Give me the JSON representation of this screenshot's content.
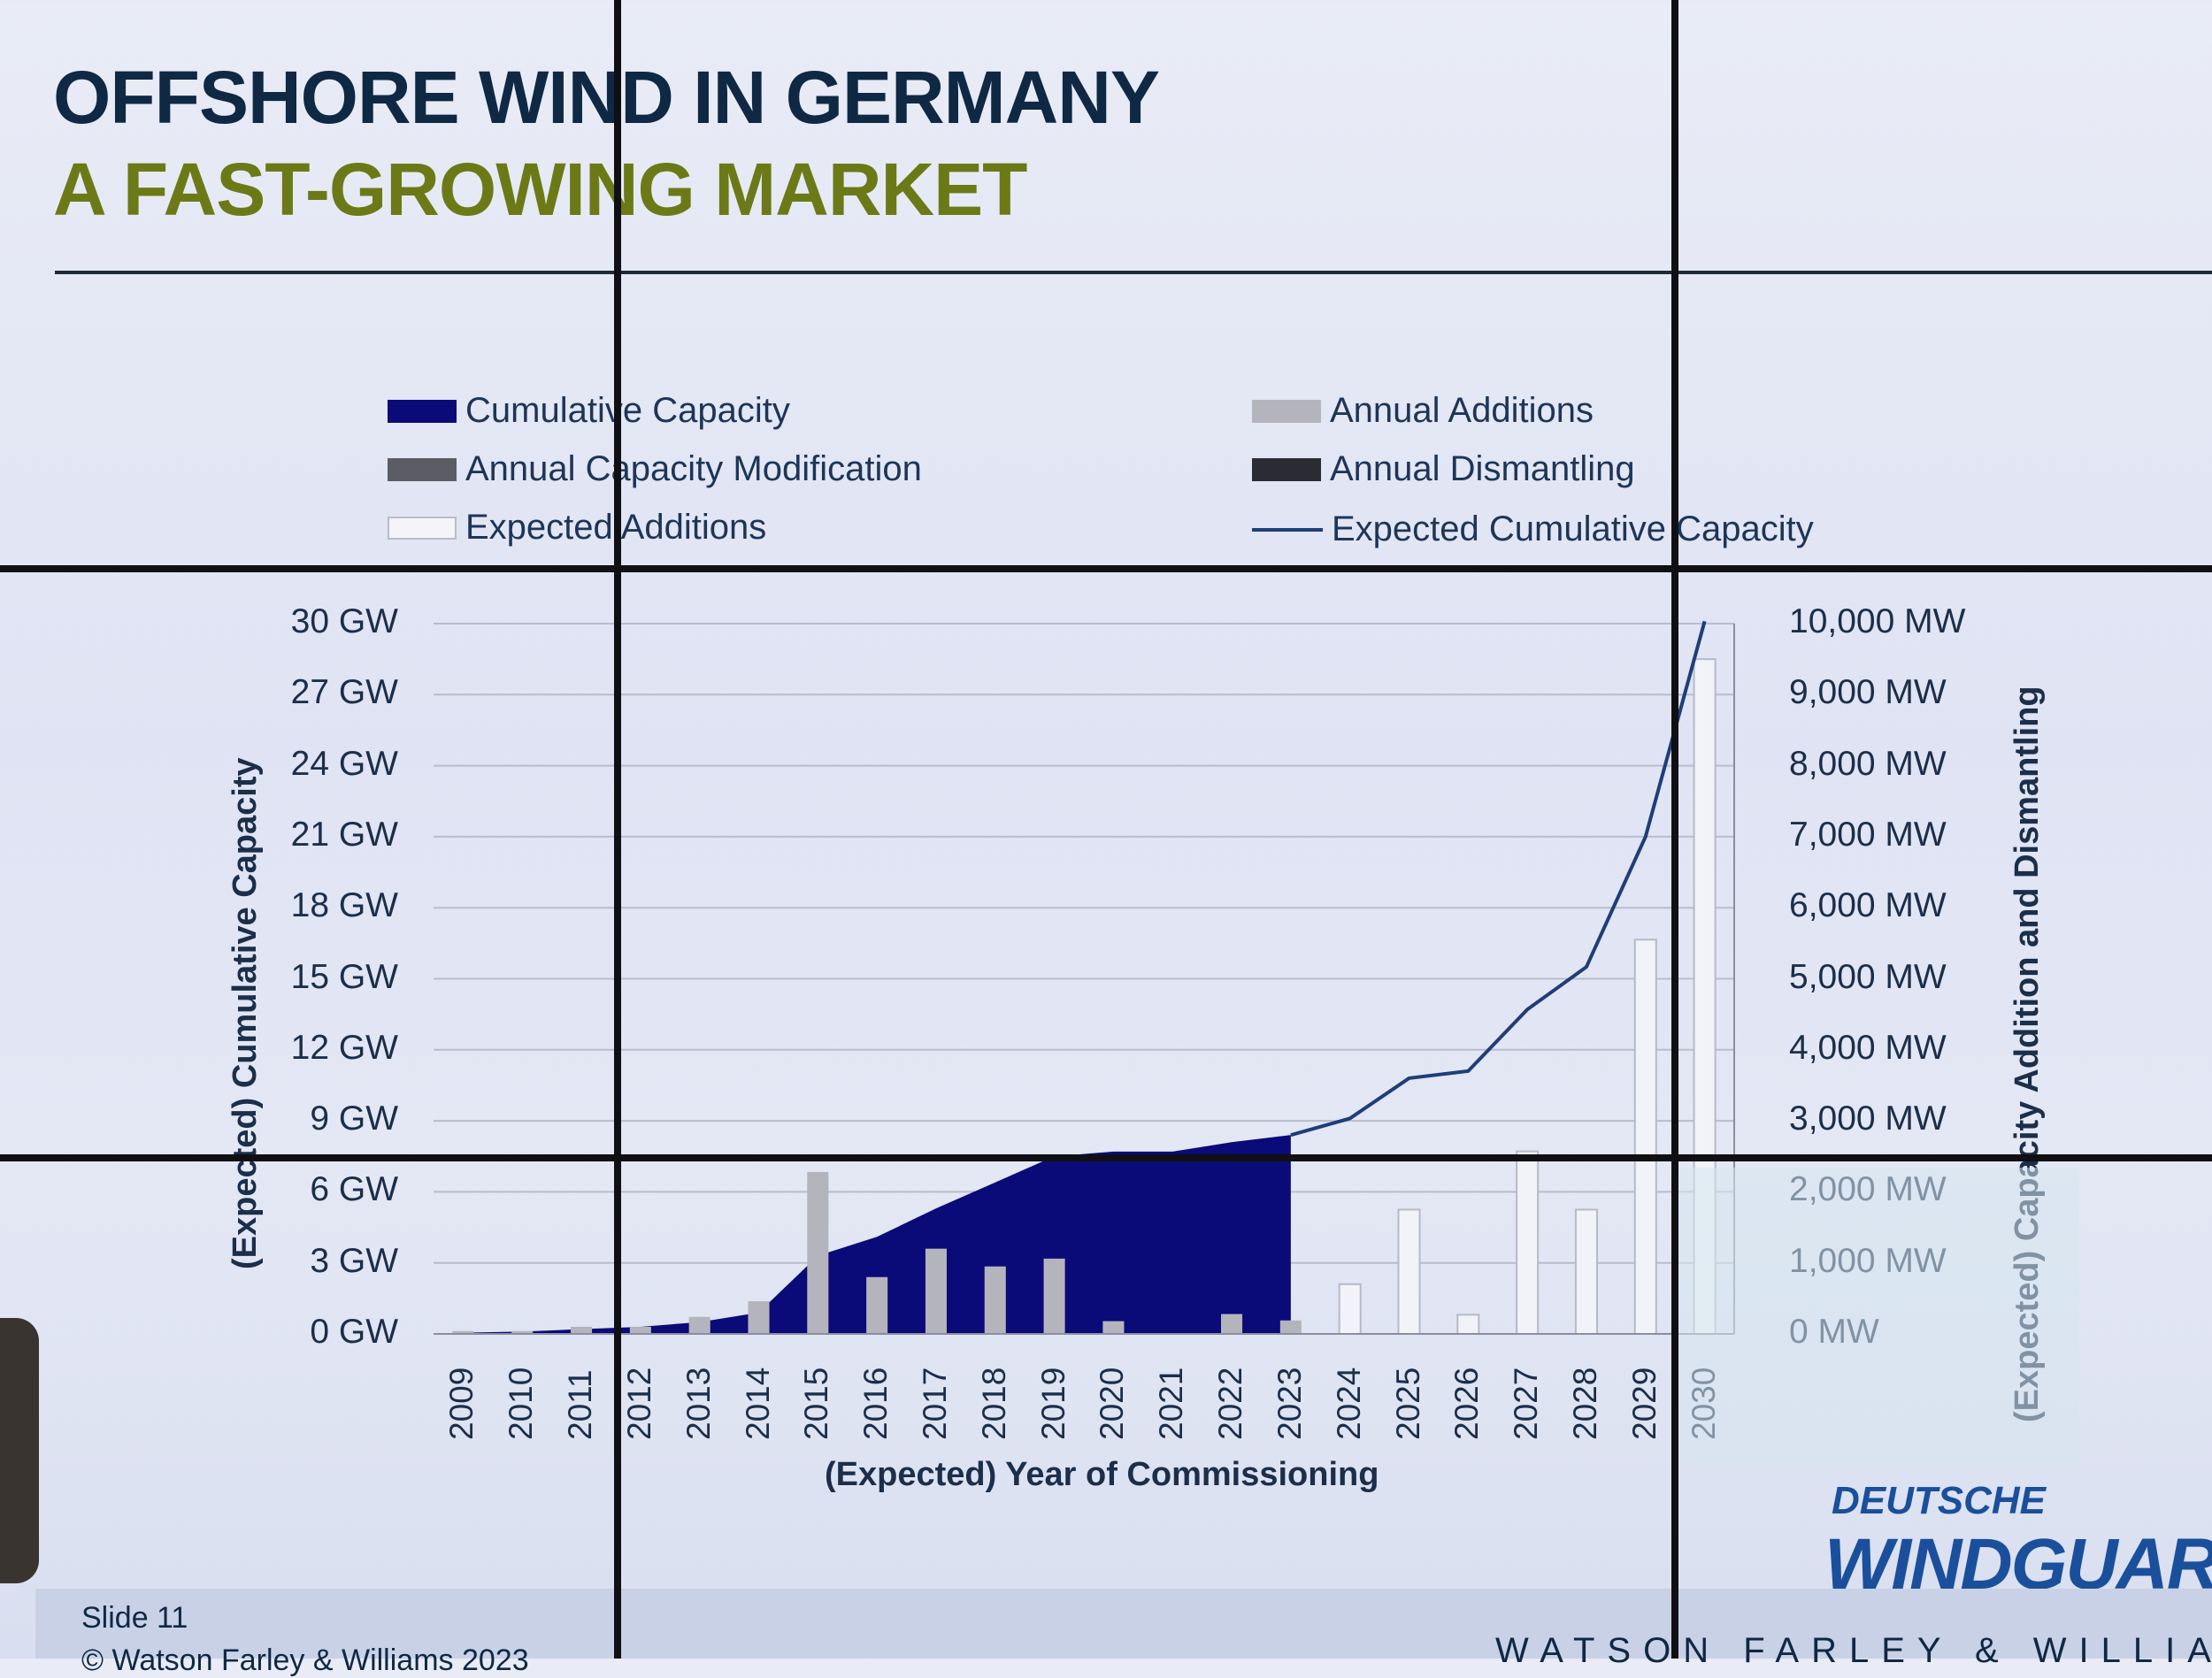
{
  "slide": {
    "title_line1": "OFFSHORE WIND IN GERMANY",
    "title_line2": "A FAST-GROWING MARKET",
    "slide_number": "Slide 11",
    "copyright": "© Watson Farley & Williams 2023",
    "brand": "WATSON FARLEY & WILLIAMS",
    "logo_line1": "DEUTSCHE",
    "logo_line2": "WINDGUARD",
    "colors": {
      "title_dark": "#0f2844",
      "title_olive": "#6b7a17",
      "cumulative": "#0a0a78",
      "additions": "#b4b4bc",
      "line": "#1f3e78"
    }
  },
  "legend": [
    {
      "label": "Cumulative Capacity",
      "style": "fill-navy"
    },
    {
      "label": "Annual Additions",
      "style": "fill-lightgray"
    },
    {
      "label": "Annual Capacity Modification",
      "style": "fill-gray"
    },
    {
      "label": "Annual Dismantling",
      "style": "fill-dark"
    },
    {
      "label": "Expected Additions",
      "style": "outline"
    },
    {
      "label": "Expected Cumulative Capacity",
      "style": "line"
    }
  ],
  "chart_data": {
    "type": "bar",
    "xlabel": "(Expected) Year of Commissioning",
    "ylabel_left": "(Expected) Cumulative Capacity",
    "ylabel_right": "(Expected) Capacity Addition and Dismantling",
    "ylim_left": [
      0,
      30
    ],
    "ylim_right": [
      0,
      10000
    ],
    "left_ticks": [
      "0 GW",
      "3 GW",
      "6 GW",
      "9 GW",
      "12 GW",
      "15 GW",
      "18 GW",
      "21 GW",
      "24 GW",
      "27 GW",
      "30 GW"
    ],
    "right_ticks": [
      "0 MW",
      "1,000 MW",
      "2,000 MW",
      "3,000 MW",
      "4,000 MW",
      "5,000 MW",
      "6,000 MW",
      "7,000 MW",
      "8,000 MW",
      "9,000 MW",
      "10,000 MW"
    ],
    "grid": true,
    "categories": [
      "2009",
      "2010",
      "2011",
      "2012",
      "2013",
      "2014",
      "2015",
      "2016",
      "2017",
      "2018",
      "2019",
      "2020",
      "2021",
      "2022",
      "2023",
      "2024",
      "2025",
      "2026",
      "2027",
      "2028",
      "2029",
      "2030"
    ],
    "series": [
      {
        "name": "Cumulative Capacity",
        "axis": "left",
        "kind": "area",
        "values": [
          0.05,
          0.1,
          0.2,
          0.3,
          0.5,
          0.9,
          3.3,
          4.1,
          5.3,
          6.4,
          7.5,
          7.7,
          7.7,
          8.1,
          8.4,
          null,
          null,
          null,
          null,
          null,
          null,
          null
        ]
      },
      {
        "name": "Annual Additions",
        "axis": "right",
        "kind": "bar",
        "values": [
          40,
          40,
          100,
          100,
          240,
          460,
          2280,
          800,
          1200,
          950,
          1060,
          180,
          0,
          280,
          190,
          null,
          null,
          null,
          null,
          null,
          null,
          null
        ]
      },
      {
        "name": "Expected Additions",
        "axis": "right",
        "kind": "bar-outline",
        "values": [
          null,
          null,
          null,
          null,
          null,
          null,
          null,
          null,
          null,
          null,
          null,
          null,
          null,
          null,
          null,
          700,
          1750,
          270,
          2570,
          1750,
          5550,
          9500
        ]
      },
      {
        "name": "Expected Cumulative Capacity",
        "axis": "left",
        "kind": "line",
        "values": [
          null,
          null,
          null,
          null,
          null,
          null,
          null,
          null,
          null,
          null,
          null,
          null,
          null,
          null,
          8.4,
          9.1,
          10.8,
          11.1,
          13.7,
          15.5,
          21.0,
          30.1
        ]
      }
    ]
  }
}
